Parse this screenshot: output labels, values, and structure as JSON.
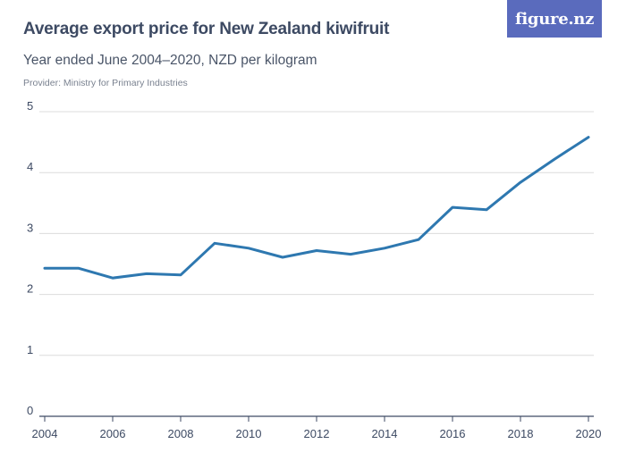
{
  "header": {
    "title": "Average export price for New Zealand kiwifruit",
    "subtitle": "Year ended June 2004–2020, NZD per kilogram",
    "provider": "Provider: Ministry for Primary Industries",
    "logo_text": "figure.nz"
  },
  "colors": {
    "line": "#2e78b0",
    "grid": "#dcdcdc",
    "axis": "#3d4a63",
    "logo_bg": "#5a6bbd"
  },
  "chart_data": {
    "type": "line",
    "title": "Average export price for New Zealand kiwifruit",
    "subtitle": "Year ended June 2004–2020, NZD per kilogram",
    "xlabel": "",
    "ylabel": "",
    "x": [
      2004,
      2005,
      2006,
      2007,
      2008,
      2009,
      2010,
      2011,
      2012,
      2013,
      2014,
      2015,
      2016,
      2017,
      2018,
      2019,
      2020
    ],
    "series": [
      {
        "values": [
          2.43,
          2.43,
          2.27,
          2.34,
          2.32,
          2.84,
          2.76,
          2.61,
          2.72,
          2.66,
          2.76,
          2.9,
          3.43,
          3.39,
          3.84,
          4.22,
          4.58
        ]
      }
    ],
    "xlim": [
      2004,
      2020
    ],
    "ylim": [
      0,
      5
    ],
    "x_ticks": [
      "2004",
      "2006",
      "2008",
      "2010",
      "2012",
      "2014",
      "2016",
      "2018",
      "2020"
    ],
    "y_ticks": [
      "0",
      "1",
      "2",
      "3",
      "4",
      "5"
    ],
    "grid": "horizontal",
    "legend": "none"
  }
}
